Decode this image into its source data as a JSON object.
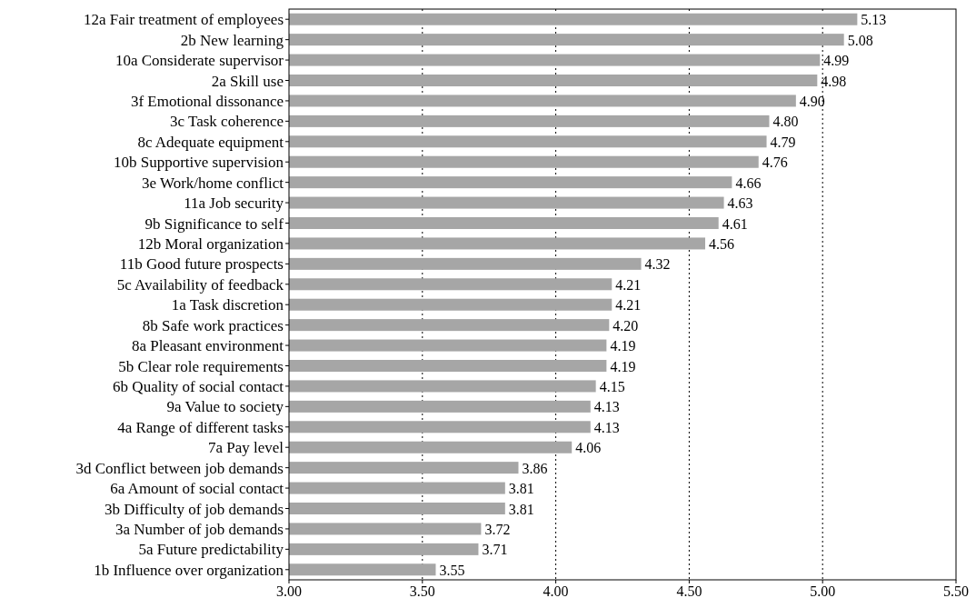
{
  "chart_data": {
    "type": "bar",
    "orientation": "horizontal",
    "categories": [
      "12a Fair treatment of employees",
      "2b New learning",
      "10a Considerate supervisor",
      "2a Skill use",
      "3f Emotional dissonance",
      "3c Task coherence",
      "8c Adequate equipment",
      "10b Supportive supervision",
      "3e Work/home conflict",
      "11a Job security",
      "9b Significance to self",
      "12b Moral organization",
      "11b Good future prospects",
      "5c Availability of feedback",
      "1a Task discretion",
      "8b Safe work practices",
      "8a Pleasant environment",
      "5b Clear role requirements",
      "6b Quality of social contact",
      "9a Value to society",
      "4a Range of different tasks",
      "7a Pay level",
      "3d Conflict between job demands",
      "6a Amount of social contact",
      "3b Difficulty of job demands",
      "3a Number of job demands",
      "5a Future predictability",
      "1b Influence over organization"
    ],
    "values": [
      5.13,
      5.08,
      4.99,
      4.98,
      4.9,
      4.8,
      4.79,
      4.76,
      4.66,
      4.63,
      4.61,
      4.56,
      4.32,
      4.21,
      4.21,
      4.2,
      4.19,
      4.19,
      4.15,
      4.13,
      4.13,
      4.06,
      3.86,
      3.81,
      3.81,
      3.72,
      3.71,
      3.55
    ],
    "value_labels": [
      "5.13",
      "5.08",
      "4.99",
      "4.98",
      "4.90",
      "4.80",
      "4.79",
      "4.76",
      "4.66",
      "4.63",
      "4.61",
      "4.56",
      "4.32",
      "4.21",
      "4.21",
      "4.20",
      "4.19",
      "4.19",
      "4.15",
      "4.13",
      "4.13",
      "4.06",
      "3.86",
      "3.81",
      "3.81",
      "3.72",
      "3.71",
      "3.55"
    ],
    "color": "#a6a6a6",
    "xlim": [
      3,
      5.5
    ],
    "xticks": [
      {
        "value": 3,
        "label": "3.00"
      },
      {
        "value": 3.5,
        "label": "3.50"
      },
      {
        "value": 4,
        "label": "4.00"
      },
      {
        "value": 4.5,
        "label": "4.50"
      },
      {
        "value": 5,
        "label": "5.00"
      },
      {
        "value": 5.5,
        "label": "5.50"
      }
    ],
    "grid": "x"
  }
}
